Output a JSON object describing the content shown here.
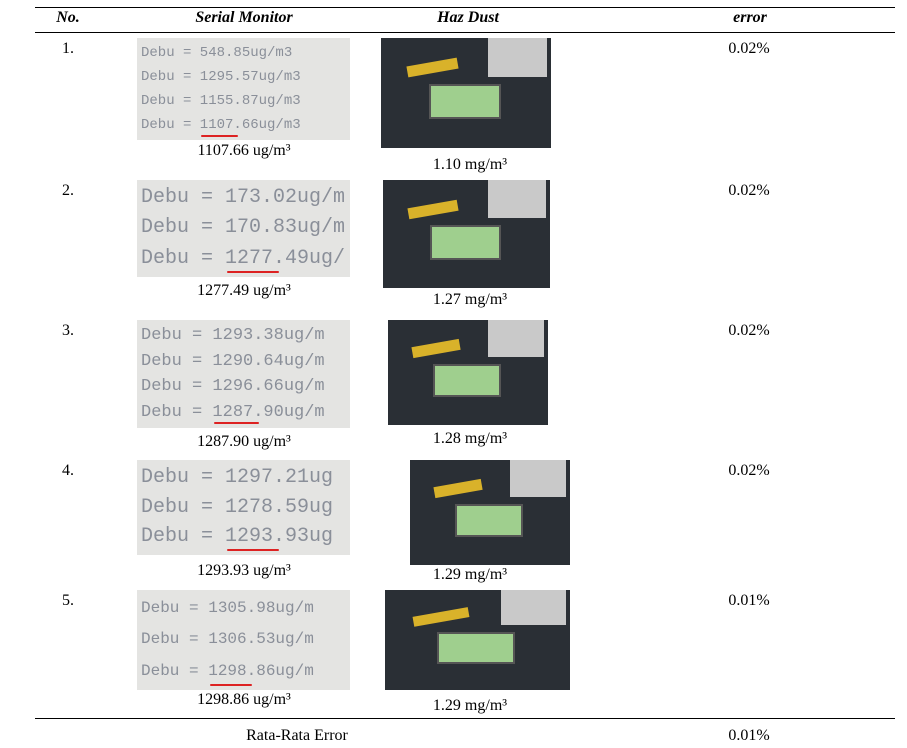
{
  "table": {
    "header": [
      "No.",
      "Serial Monitor",
      "Haz Dust",
      "error"
    ],
    "rows": [
      {
        "no": "1.",
        "serial_lines": [
          "Debu = 548.85ug/m3",
          "Debu = 1295.57ug/m3",
          "Debu = 1155.87ug/m3",
          "Debu = 1107.66ug/m3"
        ],
        "serial": "1107.66 ug/m³",
        "haz": "1.10 mg/m³",
        "error": "0.02%"
      },
      {
        "no": "2.",
        "serial_lines": [
          "Debu = 173.02ug/m",
          "Debu = 170.83ug/m",
          "Debu = 1277.49ug/"
        ],
        "serial": "1277.49 ug/m³",
        "haz": "1.27 mg/m³",
        "error": "0.02%"
      },
      {
        "no": "3.",
        "serial_lines": [
          "Debu = 1293.38ug/m",
          "Debu = 1290.64ug/m",
          "Debu = 1296.66ug/m",
          "Debu = 1287.90ug/m"
        ],
        "serial": "1287.90 ug/m³",
        "haz": "1.28 mg/m³",
        "error": "0.02%"
      },
      {
        "no": "4.",
        "serial_lines": [
          "Debu = 1297.21ug",
          "Debu = 1278.59ug",
          "Debu = 1293.93ug"
        ],
        "serial": "1293.93 ug/m³",
        "haz": "1.29 mg/m³",
        "error": "0.02%"
      },
      {
        "no": "5.",
        "serial_lines": [
          "Debu = 1305.98ug/m",
          "Debu = 1306.53ug/m",
          "Debu = 1298.86ug/m"
        ],
        "serial": "1298.86 ug/m³",
        "haz": "1.29 mg/m³",
        "error": "0.01%"
      }
    ],
    "footer": {
      "label": "Rata-Rata Error",
      "error": "0.01%"
    }
  }
}
